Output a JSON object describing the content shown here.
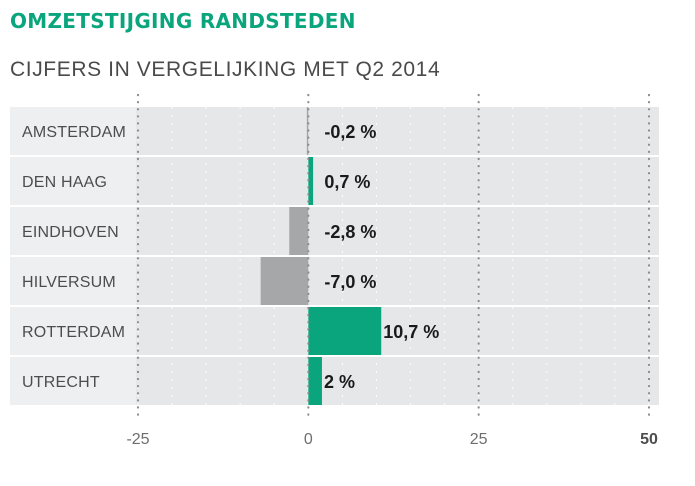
{
  "title": "OMZETSTIJGING RANDSTEDEN",
  "subtitle": "CIJFERS IN VERGELIJKING MET Q2 2014",
  "colors": {
    "title": "#0aa57d",
    "positive": "#0aa57d",
    "negative": "#a6a7a9",
    "row_background": "#e6e7e8",
    "label_background": "#eeeff0",
    "label_text": "#4d4d4d",
    "value_text": "#1a1a1a",
    "dotted_gridline": "#8c8c8c",
    "tick_text": "#6d6e70"
  },
  "chart_data": {
    "type": "bar",
    "orientation": "horizontal",
    "title": "OMZETSTIJGING RANDSTEDEN",
    "subtitle": "CIJFERS IN VERGELIJKING MET Q2 2014",
    "categories": [
      "AMSTERDAM",
      "DEN HAAG",
      "EINDHOVEN",
      "HILVERSUM",
      "ROTTERDAM",
      "UTRECHT"
    ],
    "values": [
      -0.2,
      0.7,
      -2.8,
      -7.0,
      10.7,
      2
    ],
    "value_labels": [
      "-0,2 %",
      "0,7 %",
      "-2,8 %",
      "-7,0 %",
      "10,7 %",
      "2 %"
    ],
    "xlim": [
      -25,
      50
    ],
    "ticks": [
      -25,
      0,
      25,
      50
    ],
    "tick_labels": [
      "-25",
      "0",
      "25",
      "50"
    ],
    "grid": true,
    "xlabel": "",
    "ylabel": ""
  }
}
